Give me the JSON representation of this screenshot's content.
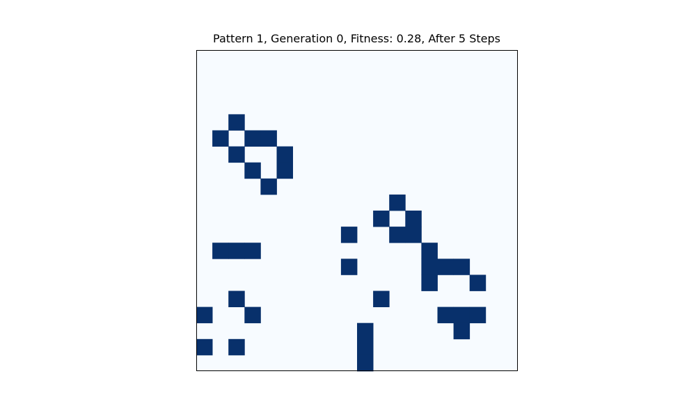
{
  "chart_data": {
    "type": "heatmap",
    "title": "Pattern 1, Generation 0, Fitness: 0.28, After 5 Steps",
    "xlabel": "",
    "ylabel": "",
    "rows": 20,
    "cols": 20,
    "colormap": "Blues",
    "colors": {
      "dead": "#f7fbff",
      "alive": "#08306b",
      "frame": "#000000"
    },
    "axes_ticks": false,
    "alive_cells": [
      [
        4,
        2
      ],
      [
        5,
        1
      ],
      [
        5,
        3
      ],
      [
        5,
        4
      ],
      [
        6,
        2
      ],
      [
        6,
        5
      ],
      [
        7,
        3
      ],
      [
        7,
        5
      ],
      [
        8,
        4
      ],
      [
        9,
        12
      ],
      [
        10,
        11
      ],
      [
        10,
        13
      ],
      [
        11,
        9
      ],
      [
        11,
        12
      ],
      [
        11,
        13
      ],
      [
        12,
        1
      ],
      [
        12,
        2
      ],
      [
        12,
        3
      ],
      [
        12,
        14
      ],
      [
        13,
        9
      ],
      [
        13,
        14
      ],
      [
        13,
        15
      ],
      [
        13,
        16
      ],
      [
        14,
        14
      ],
      [
        14,
        17
      ],
      [
        15,
        2
      ],
      [
        15,
        11
      ],
      [
        16,
        0
      ],
      [
        16,
        3
      ],
      [
        16,
        15
      ],
      [
        16,
        16
      ],
      [
        16,
        17
      ],
      [
        17,
        10
      ],
      [
        17,
        16
      ],
      [
        18,
        0
      ],
      [
        18,
        2
      ],
      [
        18,
        10
      ],
      [
        19,
        10
      ]
    ]
  }
}
